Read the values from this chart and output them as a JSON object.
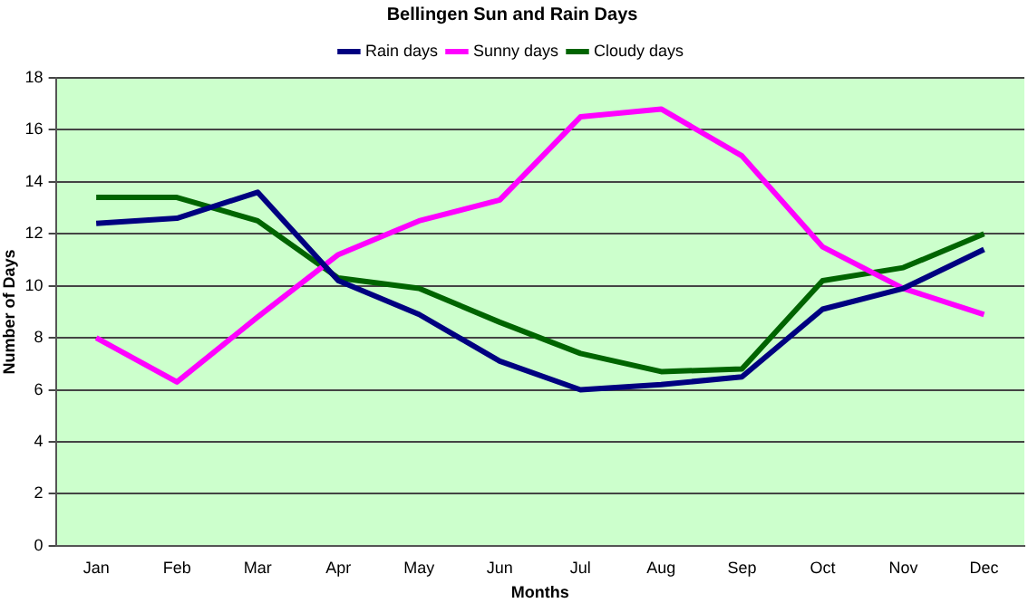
{
  "chart_data": {
    "type": "line",
    "title": "Bellingen Sun and Rain Days",
    "xlabel": "Months",
    "ylabel": "Number of Days",
    "categories": [
      "Jan",
      "Feb",
      "Mar",
      "Apr",
      "May",
      "Jun",
      "Jul",
      "Aug",
      "Sep",
      "Oct",
      "Nov",
      "Dec"
    ],
    "series": [
      {
        "name": "Rain days",
        "color": "#000080",
        "values": [
          12.4,
          12.6,
          13.6,
          10.2,
          8.9,
          7.1,
          6.0,
          6.2,
          6.5,
          9.1,
          9.9,
          11.4
        ]
      },
      {
        "name": "Sunny days",
        "color": "#ff00ff",
        "values": [
          8.0,
          6.3,
          8.8,
          11.2,
          12.5,
          13.3,
          16.5,
          16.8,
          15.0,
          11.5,
          9.9,
          8.9
        ]
      },
      {
        "name": "Cloudy days",
        "color": "#006400",
        "values": [
          13.4,
          13.4,
          12.5,
          10.3,
          9.9,
          8.6,
          7.4,
          6.7,
          6.8,
          10.2,
          10.7,
          12.0
        ]
      }
    ],
    "ylim": [
      0,
      18
    ],
    "yticks": [
      0,
      2,
      4,
      6,
      8,
      10,
      12,
      14,
      16,
      18
    ],
    "grid": "y",
    "legend": "top",
    "marker": "none",
    "line_style": "solid"
  }
}
